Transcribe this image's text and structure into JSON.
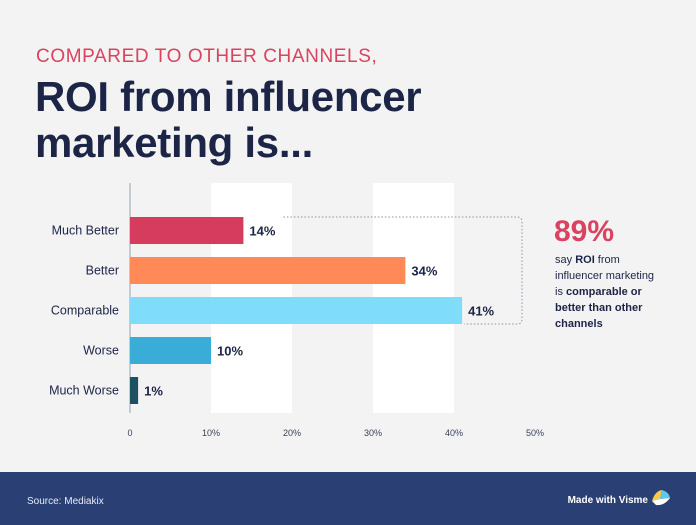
{
  "header": {
    "eyebrow": "COMPARED TO OTHER CHANNELS,",
    "title_line1": "ROI from influencer",
    "title_line2": "marketing is..."
  },
  "colors": {
    "eyebrow": "#d9435f",
    "title": "#1c2545",
    "callout": "#d9435f",
    "footer_bg": "#2a3f73",
    "grid_band": "#ffffff",
    "bracket": "#8e93a3"
  },
  "chart_data": {
    "type": "bar",
    "orientation": "horizontal",
    "categories": [
      "Much Better",
      "Better",
      "Comparable",
      "Worse",
      "Much Worse"
    ],
    "values": [
      14,
      34,
      41,
      10,
      1
    ],
    "value_labels": [
      "14%",
      "34%",
      "41%",
      "10%",
      "1%"
    ],
    "bar_colors": [
      "#d63c5e",
      "#ff8a58",
      "#7fdcfa",
      "#39add8",
      "#1f4f63"
    ],
    "xlim": [
      0,
      50
    ],
    "x_ticks": [
      0,
      10,
      20,
      30,
      40,
      50
    ],
    "x_tick_labels": [
      "0",
      "10%",
      "20%",
      "30%",
      "40%",
      "50%"
    ],
    "grid": "alternating vertical bands"
  },
  "callout": {
    "percent": "89%",
    "line1_pre": "say ",
    "line1_bold": "ROI",
    "line1_post": " from",
    "line2": "influencer marketing",
    "line3_pre": "is ",
    "line3_bold": "comparable or",
    "line4_bold": "better than other",
    "line5_bold": "channels"
  },
  "footer": {
    "source": "Source: Mediakix",
    "brand": "Made with Visme",
    "brand_icon": "visme-logo-icon"
  }
}
